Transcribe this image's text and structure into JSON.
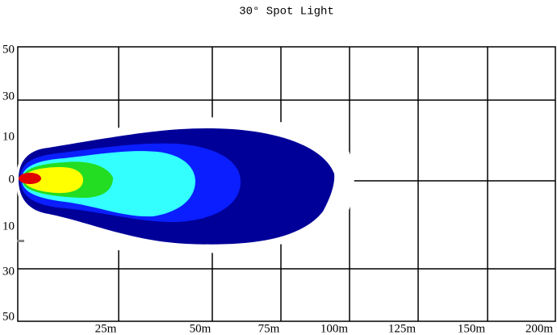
{
  "title": "30° Spot Light",
  "y_labels": [
    "50",
    "30",
    "10",
    "0",
    "10",
    "30",
    "50"
  ],
  "x_labels": [
    "25m",
    "50m",
    "75m",
    "100m",
    "125m",
    "150m",
    "200m"
  ]
}
